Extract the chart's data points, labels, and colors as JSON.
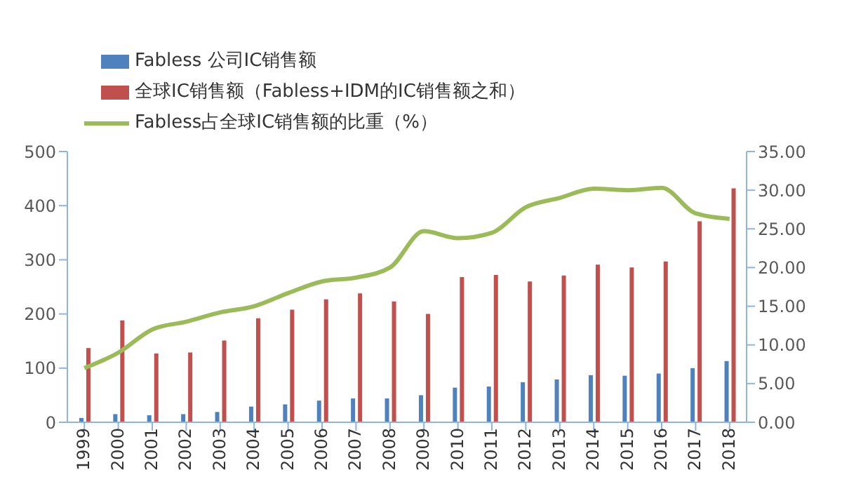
{
  "chart_data": {
    "type": "bar",
    "categories": [
      "1999",
      "2000",
      "2001",
      "2002",
      "2003",
      "2004",
      "2005",
      "2006",
      "2007",
      "2008",
      "2009",
      "2010",
      "2011",
      "2012",
      "2013",
      "2014",
      "2015",
      "2016",
      "2017",
      "2018"
    ],
    "series": [
      {
        "name": "Fabless 公司IC销售额",
        "color": "#4f81bd",
        "values": [
          8,
          15,
          13,
          15,
          19,
          29,
          33,
          40,
          44,
          44,
          50,
          64,
          66,
          74,
          79,
          87,
          86,
          90,
          100,
          113
        ]
      },
      {
        "name": "全球IC销售额（Fabless+IDM的IC销售额之和）",
        "color": "#c0504d",
        "values": [
          137,
          188,
          127,
          129,
          151,
          192,
          208,
          227,
          238,
          223,
          200,
          268,
          272,
          260,
          271,
          291,
          286,
          297,
          371,
          432
        ]
      },
      {
        "name": "Fabless占全球IC销售额的比重（%）",
        "type": "line",
        "axis": "y2",
        "color": "#9bbb59",
        "marker": "none",
        "values": [
          7,
          9,
          12,
          13,
          14.2,
          15,
          16.7,
          18.2,
          18.7,
          20,
          24.7,
          23.8,
          24.5,
          27.8,
          29,
          30.2,
          30,
          30.3,
          27,
          26.3
        ]
      }
    ],
    "ylim": [
      0,
      500
    ],
    "yticks": [
      0,
      100,
      200,
      300,
      400,
      500
    ],
    "y2lim": [
      0,
      35
    ],
    "y2ticks": [
      {
        "value": 0,
        "label": "0.00"
      },
      {
        "value": 5,
        "label": "5.00"
      },
      {
        "value": 10,
        "label": "10.00"
      },
      {
        "value": 15,
        "label": "15.00"
      },
      {
        "value": 20,
        "label": "20.00"
      },
      {
        "value": 25,
        "label": "25.00"
      },
      {
        "value": 30,
        "label": "30.00"
      },
      {
        "value": 35,
        "label": "35.00"
      }
    ],
    "grid": false,
    "legend": "top left"
  }
}
